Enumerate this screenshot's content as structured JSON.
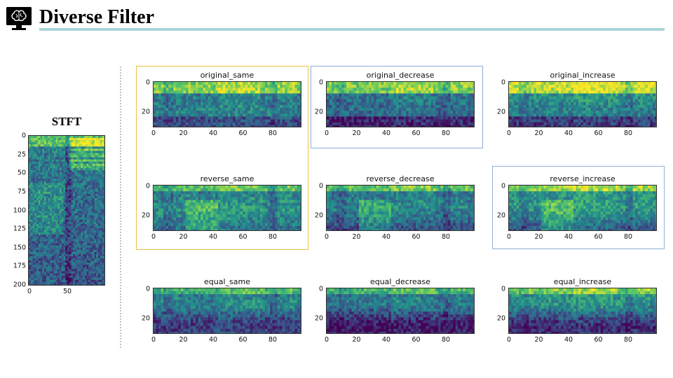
{
  "header": {
    "title": "Diverse Filter",
    "logo_icon": "brain-monitor-icon",
    "bar_color": "#a8d4d8"
  },
  "stft": {
    "title": "STFT",
    "y_ticks": [
      "0",
      "25",
      "50",
      "75",
      "100",
      "125",
      "150",
      "175",
      "200"
    ],
    "x_ticks": [
      "0",
      "50"
    ]
  },
  "panels": [
    {
      "id": "original_same",
      "title": "original_same",
      "variant": "original",
      "trend": "same"
    },
    {
      "id": "original_decrease",
      "title": "original_decrease",
      "variant": "original",
      "trend": "decrease"
    },
    {
      "id": "original_increase",
      "title": "original_increase",
      "variant": "original",
      "trend": "increase"
    },
    {
      "id": "reverse_same",
      "title": "reverse_same",
      "variant": "reverse",
      "trend": "same"
    },
    {
      "id": "reverse_decrease",
      "title": "reverse_decrease",
      "variant": "reverse",
      "trend": "decrease"
    },
    {
      "id": "reverse_increase",
      "title": "reverse_increase",
      "variant": "reverse",
      "trend": "increase"
    },
    {
      "id": "equal_same",
      "title": "equal_same",
      "variant": "equal",
      "trend": "same"
    },
    {
      "id": "equal_decrease",
      "title": "equal_decrease",
      "variant": "equal",
      "trend": "decrease"
    },
    {
      "id": "equal_increase",
      "title": "equal_increase",
      "variant": "equal",
      "trend": "increase"
    }
  ],
  "panel_axes": {
    "x_ticks": [
      "0",
      "20",
      "40",
      "60",
      "80"
    ],
    "y_ticks": [
      "0",
      "20"
    ]
  },
  "highlights": [
    {
      "id": "highlight-same-column",
      "color": "#f0c040"
    },
    {
      "id": "highlight-original-decrease",
      "color": "#8fb0d8"
    },
    {
      "id": "highlight-reverse-increase",
      "color": "#8fb0d8"
    }
  ],
  "colormap": {
    "dark": "#2a0a4a",
    "mid": "#25858e",
    "light": "#fde725"
  }
}
